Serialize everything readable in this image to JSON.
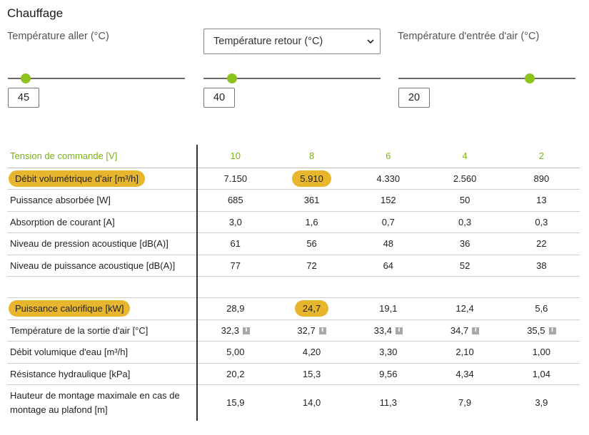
{
  "section_title": "Chauffage",
  "controls": {
    "supply_temp": {
      "label": "Température aller (°C)",
      "value": "45",
      "slider_fraction": 0.1
    },
    "return_temp": {
      "selected": "Température retour (°C)",
      "value": "40",
      "slider_fraction": 0.16
    },
    "air_inlet_temp": {
      "label": "Température d'entrée d'air (°C)",
      "value": "20",
      "slider_fraction": 0.74
    }
  },
  "table": {
    "header": {
      "label": "Tension de commande [V]",
      "values": [
        "10",
        "8",
        "6",
        "4",
        "2"
      ]
    },
    "rows": [
      {
        "label": "Débit volumétrique d'air [m³/h]",
        "values": [
          "7.150",
          "5.910",
          "4.330",
          "2.560",
          "890"
        ],
        "highlight_label": true,
        "highlight_col": 1
      },
      {
        "label": "Puissance absorbée [W]",
        "values": [
          "685",
          "361",
          "152",
          "50",
          "13"
        ]
      },
      {
        "label": "Absorption de courant [A]",
        "values": [
          "3,0",
          "1,6",
          "0,7",
          "0,3",
          "0,3"
        ]
      },
      {
        "label": "Niveau de pression acoustique [dB(A)]",
        "values": [
          "61",
          "56",
          "48",
          "36",
          "22"
        ]
      },
      {
        "label": "Niveau de puissance acoustique [dB(A)]",
        "values": [
          "77",
          "72",
          "64",
          "52",
          "38"
        ]
      },
      {
        "label": "Puissance calorifique [kW]",
        "values": [
          "28,9",
          "24,7",
          "19,1",
          "12,4",
          "5,6"
        ],
        "highlight_label": true,
        "highlight_col": 1
      },
      {
        "label": "Température de la sortie d'air [°C]",
        "values": [
          "32,3",
          "32,7",
          "33,4",
          "34,7",
          "35,5"
        ],
        "info_icons": true
      },
      {
        "label": "Débit volumique d'eau [m³/h]",
        "values": [
          "5,00",
          "4,20",
          "3,30",
          "2,10",
          "1,00"
        ]
      },
      {
        "label": "Résistance hydraulique [kPa]",
        "values": [
          "20,2",
          "15,3",
          "9,56",
          "4,34",
          "1,04"
        ]
      },
      {
        "label": "Hauteur de montage maximale en cas de montage au plafond [m]",
        "values": [
          "15,9",
          "14,0",
          "11,3",
          "7,9",
          "3,9"
        ]
      }
    ]
  },
  "colors": {
    "accent_green": "#8dc21f",
    "highlight": "#e8b62d"
  }
}
